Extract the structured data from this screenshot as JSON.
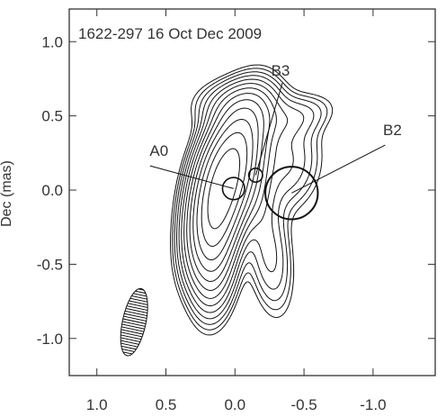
{
  "chart_data": {
    "type": "contour",
    "title": "1622-297  16 Oct Dec 2009",
    "ylabel": "Dec (mas)",
    "xlabel": "",
    "xlim": [
      1.2,
      -1.45
    ],
    "ylim": [
      -1.25,
      1.22
    ],
    "x_ticks": [
      1.0,
      0.5,
      0.0,
      -0.5,
      -1.0
    ],
    "x_tick_labels": [
      "1.0",
      "0.5",
      "0.0",
      "-0.5",
      "-1.0"
    ],
    "y_ticks": [
      1.0,
      0.5,
      0.0,
      -0.5,
      -1.0
    ],
    "y_tick_labels": [
      "1.0",
      "0.5",
      "0.0",
      "-0.5",
      "-1.0"
    ],
    "components": [
      {
        "label": "A0",
        "x": 0.01,
        "y": 0.01,
        "size": 0.08,
        "label_x": 0.55,
        "label_y": 0.23
      },
      {
        "label": "B3",
        "x": -0.15,
        "y": 0.1,
        "size": 0.05,
        "label_x": -0.33,
        "label_y": 0.77
      },
      {
        "label": "B2",
        "x": -0.41,
        "y": -0.02,
        "size": 0.19,
        "label_x": -1.14,
        "label_y": 0.37
      }
    ],
    "beam": {
      "x": 0.73,
      "y": -0.89,
      "major": 0.23,
      "minor": 0.07,
      "pa_deg": 12
    },
    "grid": false
  }
}
